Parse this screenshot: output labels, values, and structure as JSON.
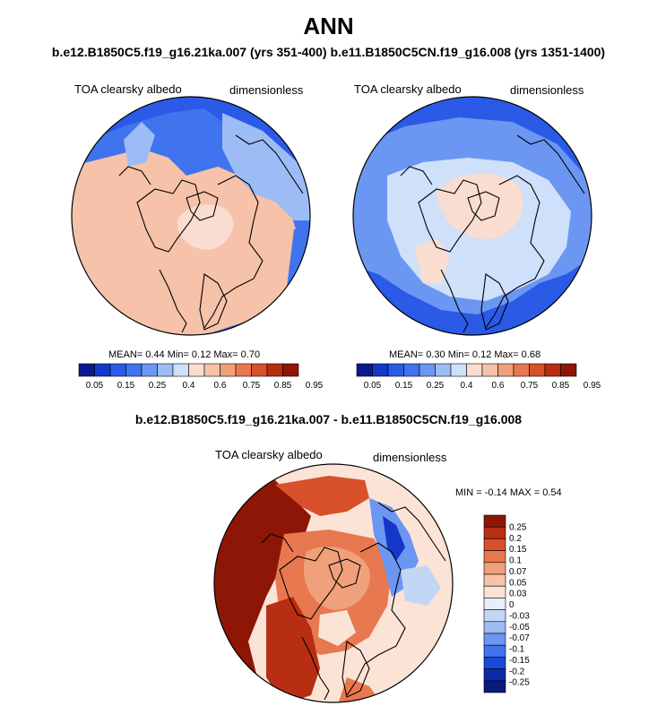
{
  "title": "ANN",
  "subtitle_top": "b.e12.B1850C5.f19_g16.21ka.007 (yrs 351-400) b.e11.B1850C5CN.f19_g16.008 (yrs 1351-1400)",
  "subtitle_diff": "b.e12.B1850C5.f19_g16.21ka.007 - b.e11.B1850C5CN.f19_g16.008",
  "panels": [
    {
      "variable": "TOA clearsky albedo",
      "units": "dimensionless",
      "stats": "MEAN=   0.44  Min=   0.12  Max=   0.70",
      "colorbar_labels": [
        "0.05",
        "0.15",
        "0.25",
        "0.4",
        "0.6",
        "0.75",
        "0.85",
        "0.95"
      ]
    },
    {
      "variable": "TOA clearsky albedo",
      "units": "dimensionless",
      "stats": "MEAN=   0.30  Min=   0.12  Max=   0.68",
      "colorbar_labels": [
        "0.05",
        "0.15",
        "0.25",
        "0.4",
        "0.6",
        "0.75",
        "0.85",
        "0.95"
      ]
    },
    {
      "variable": "TOA clearsky albedo",
      "units": "dimensionless",
      "stats": "MIN =  -0.14 MAX =   0.54",
      "colorbar_labels": [
        "0.25",
        "0.2",
        "0.15",
        "0.1",
        "0.07",
        "0.05",
        "0.03",
        "0",
        "-0.03",
        "-0.05",
        "-0.07",
        "-0.1",
        "-0.15",
        "-0.2",
        "-0.25"
      ]
    }
  ],
  "colors": {
    "scale": [
      "#0a1a8c",
      "#1437c8",
      "#2a5ae6",
      "#3f74ee",
      "#6b96f2",
      "#9dbcf5",
      "#cfe0fa",
      "#f8ddd0",
      "#f6c2aa",
      "#f0a07a",
      "#e8784f",
      "#d8512a",
      "#b82e12",
      "#8e1606"
    ],
    "diff_scale": [
      "#8e1606",
      "#b82e12",
      "#d8512a",
      "#e8784f",
      "#f0a07a",
      "#f6c2aa",
      "#fbe3d6",
      "#e8eefa",
      "#c4d6f6",
      "#9dbcf5",
      "#6b96f2",
      "#3f74ee",
      "#1a48d8",
      "#0c2aa8",
      "#081a7a"
    ]
  }
}
